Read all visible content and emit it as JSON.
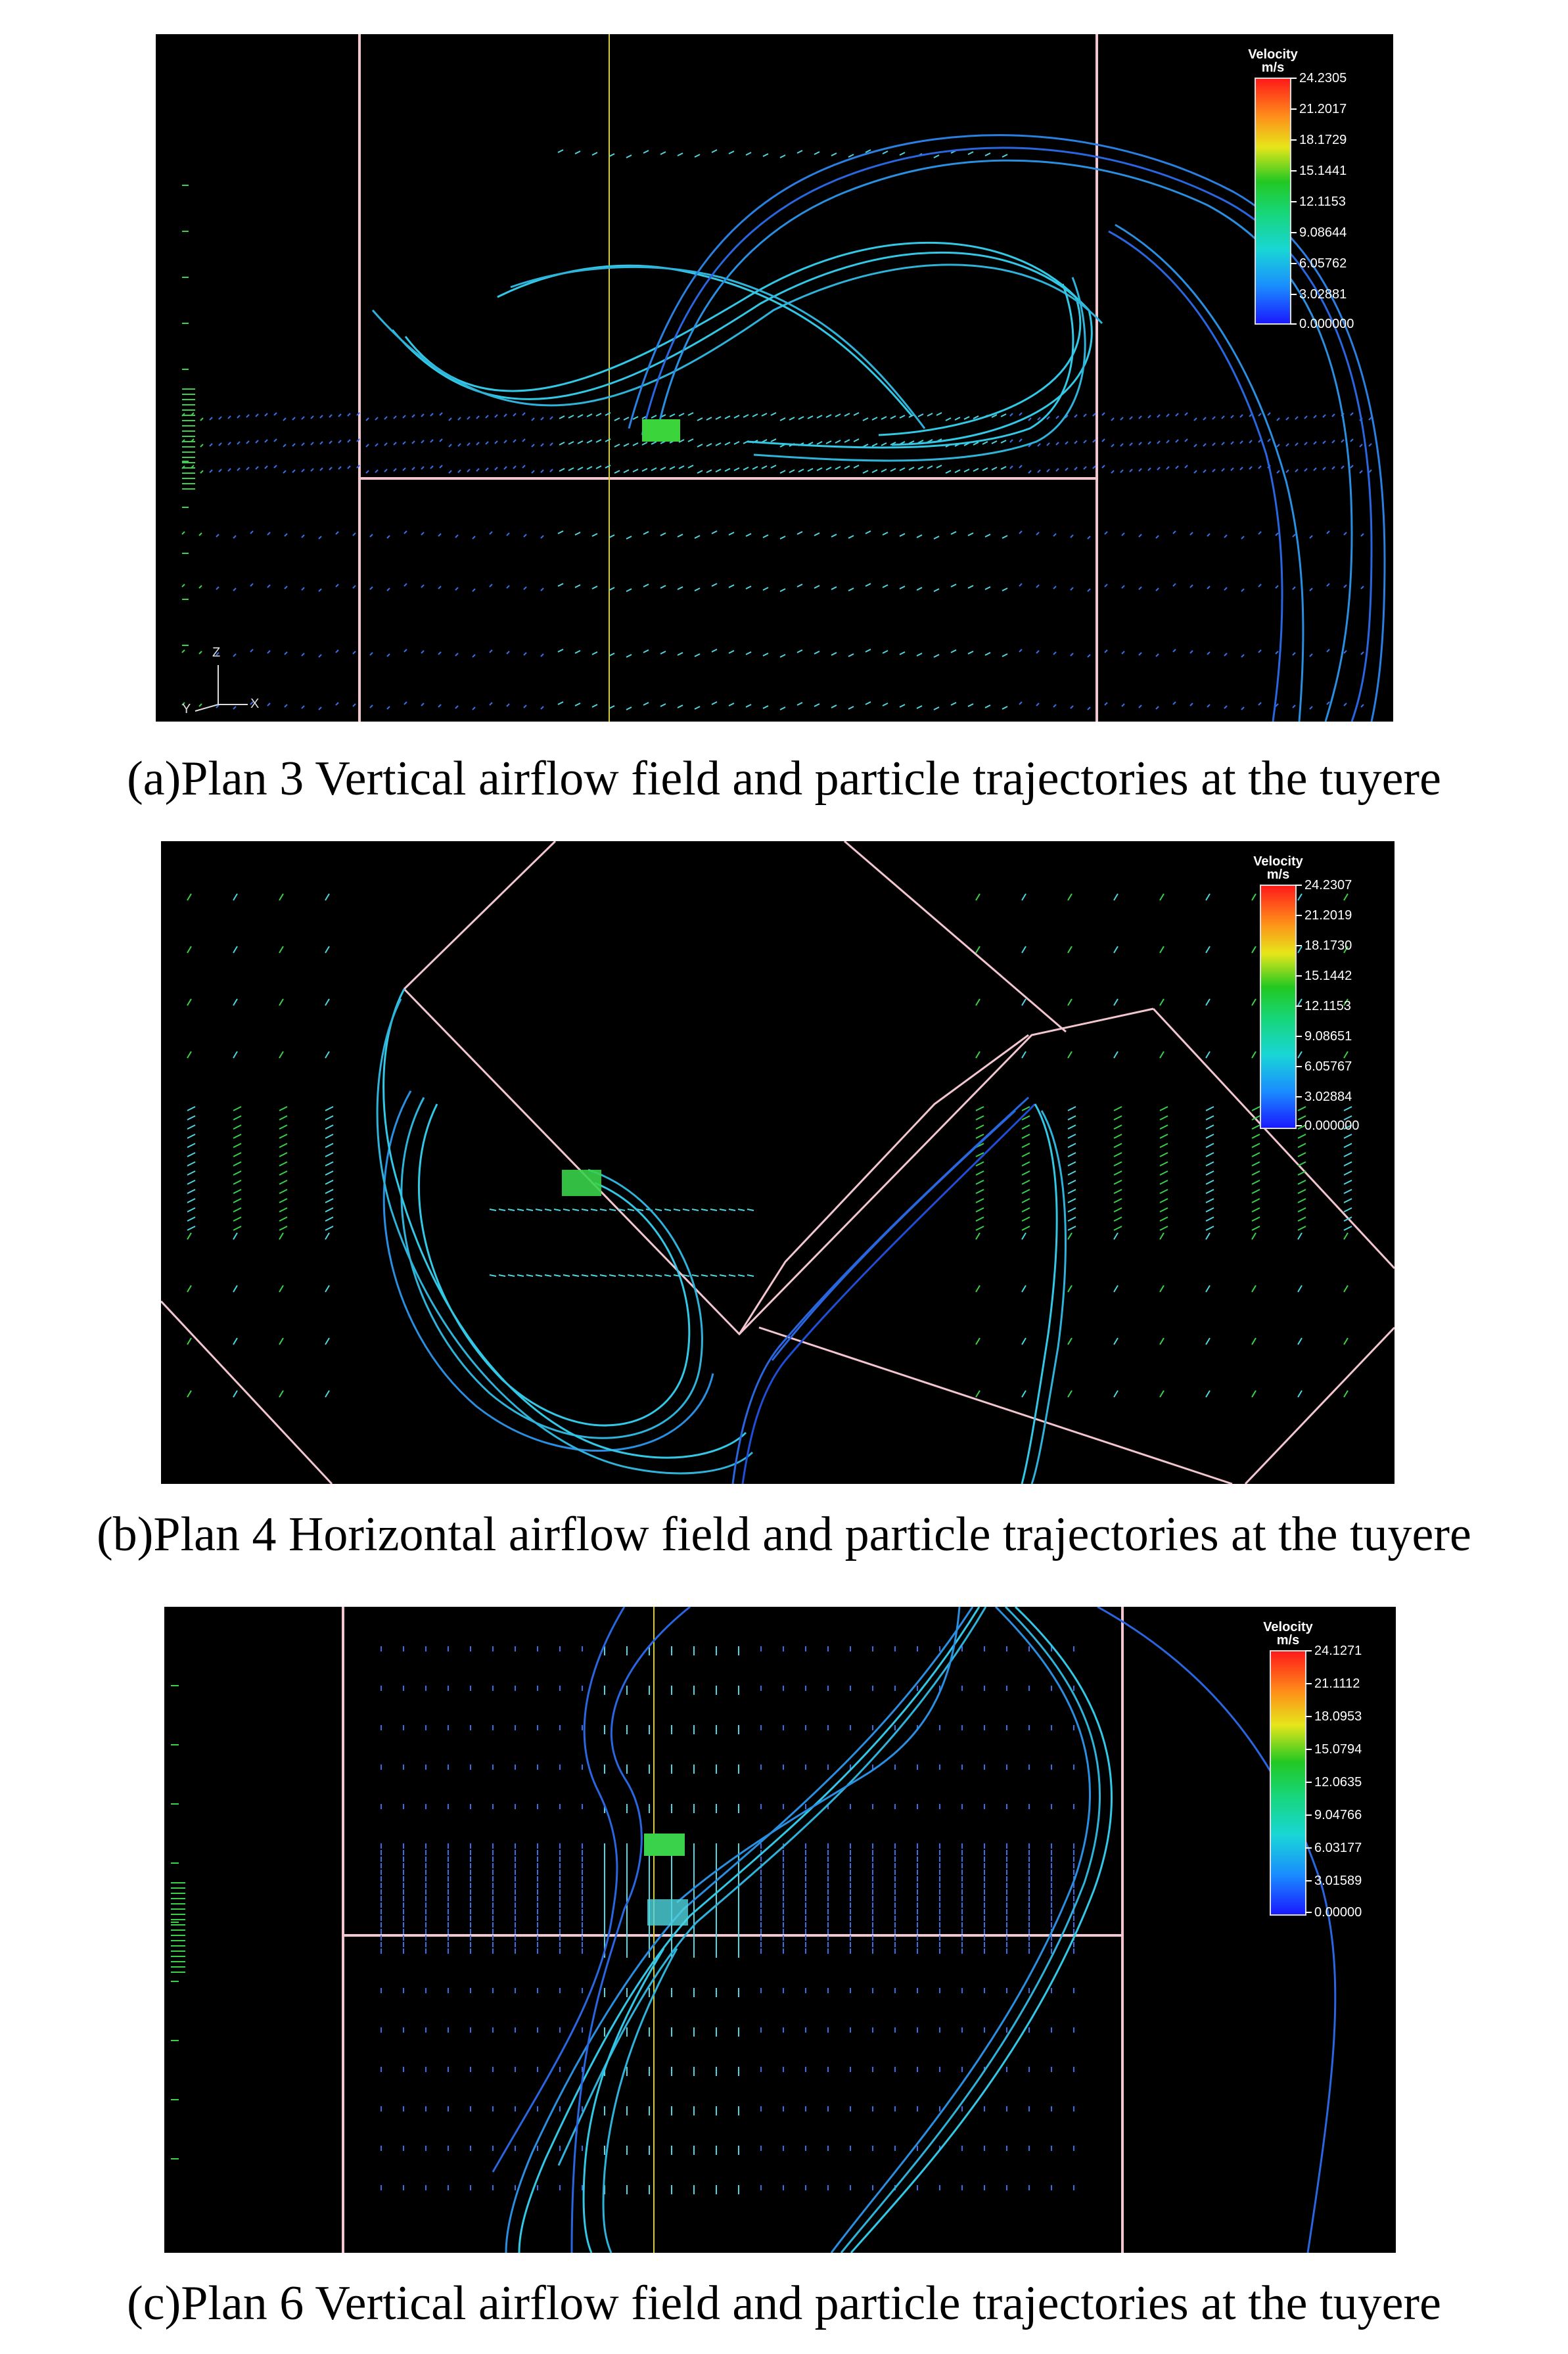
{
  "panels": [
    {
      "id": "a",
      "caption": "(a)Plan 3 Vertical airflow field and particle trajectories at the tuyere",
      "legend": {
        "title_line1": "Velocity",
        "title_line2": "m/s",
        "ticks": [
          "24.2305",
          "21.2017",
          "18.1729",
          "15.1441",
          "12.1153",
          "9.08644",
          "6.05762",
          "3.02881",
          "0.000000"
        ]
      },
      "axes": {
        "z": "Z",
        "y": "Y",
        "x": "X"
      }
    },
    {
      "id": "b",
      "caption": "(b)Plan 4 Horizontal airflow field and particle trajectories at the tuyere",
      "legend": {
        "title_line1": "Velocity",
        "title_line2": "m/s",
        "ticks": [
          "24.2307",
          "21.2019",
          "18.1730",
          "15.1442",
          "12.1153",
          "9.08651",
          "6.05767",
          "3.02884",
          "0.000000"
        ]
      }
    },
    {
      "id": "c",
      "caption": "(c)Plan 6 Vertical airflow field and particle trajectories at the tuyere",
      "legend": {
        "title_line1": "Velocity",
        "title_line2": "m/s",
        "ticks": [
          "24.1271",
          "21.1112",
          "18.0953",
          "15.0794",
          "12.0635",
          "9.04766",
          "6.03177",
          "3.01589",
          "0.00000"
        ]
      }
    }
  ],
  "colors": {
    "background": "#000000",
    "boundary": "#f3c6cf",
    "centerline": "#d6c93a",
    "trajectory_cyan": "#33c8e6",
    "trajectory_blue": "#2a66e0",
    "vector_green": "#39d24a",
    "vector_cyan": "#4fd6e0",
    "vector_blue": "#3a6ee6"
  }
}
